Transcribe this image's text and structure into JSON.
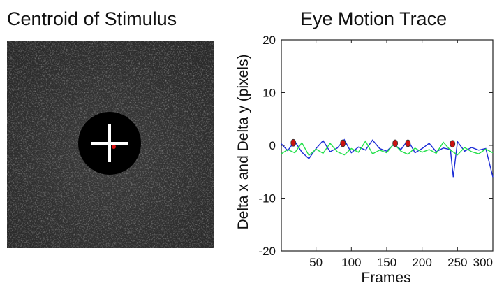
{
  "left_panel": {
    "title": "Centroid of Stimulus"
  },
  "chart_data": {
    "type": "line",
    "title": "Eye Motion Trace",
    "xlabel": "Frames",
    "ylabel": "Delta x and Delta y (pixels)",
    "xlim": [
      1,
      300
    ],
    "ylim": [
      -20,
      20
    ],
    "x_ticks": [
      50,
      100,
      150,
      200,
      250,
      300
    ],
    "y_ticks": [
      20,
      10,
      0,
      -10,
      -20
    ],
    "grid": false,
    "colors": {
      "series_blue": "#1a2bd6",
      "series_green": "#22e04a",
      "markers": "#cc1111"
    },
    "series": [
      {
        "color": "#1a2bd6",
        "x": [
          1,
          10,
          20,
          30,
          40,
          50,
          60,
          70,
          80,
          90,
          100,
          110,
          120,
          130,
          140,
          150,
          160,
          170,
          180,
          190,
          200,
          210,
          220,
          230,
          240,
          244,
          250,
          260,
          270,
          280,
          290,
          300
        ],
        "y": [
          0.3,
          -1.0,
          0.8,
          -1.3,
          -2.5,
          -0.6,
          0.9,
          -1.2,
          -0.5,
          1.1,
          -1.4,
          -0.3,
          -0.9,
          1.0,
          -0.6,
          -1.1,
          0.2,
          -0.8,
          1.0,
          -1.4,
          -0.6,
          0.4,
          -1.2,
          -0.5,
          -0.8,
          -6.0,
          0.7,
          -1.1,
          -0.4,
          -0.9,
          -0.6,
          -6.0
        ]
      },
      {
        "color": "#22e04a",
        "x": [
          1,
          10,
          20,
          30,
          40,
          50,
          60,
          70,
          80,
          90,
          100,
          110,
          120,
          130,
          140,
          150,
          160,
          170,
          180,
          190,
          200,
          210,
          220,
          230,
          240,
          250,
          260,
          270,
          280,
          290,
          300
        ],
        "y": [
          -1.6,
          -0.8,
          -1.4,
          0.5,
          -1.9,
          -0.7,
          -1.5,
          0.4,
          -1.2,
          -1.8,
          -0.6,
          -1.3,
          0.8,
          -1.6,
          -0.9,
          -1.4,
          0.3,
          -1.1,
          -1.7,
          -0.5,
          -1.3,
          -0.8,
          -1.5,
          0.6,
          -0.9,
          -1.8,
          -0.4,
          -1.2,
          -1.6,
          -0.7,
          -1.4
        ]
      }
    ],
    "markers": {
      "color": "#cc1111",
      "x": [
        18,
        88,
        162,
        180,
        243
      ],
      "y": [
        0.5,
        0.4,
        0.4,
        0.4,
        0.3
      ]
    }
  }
}
